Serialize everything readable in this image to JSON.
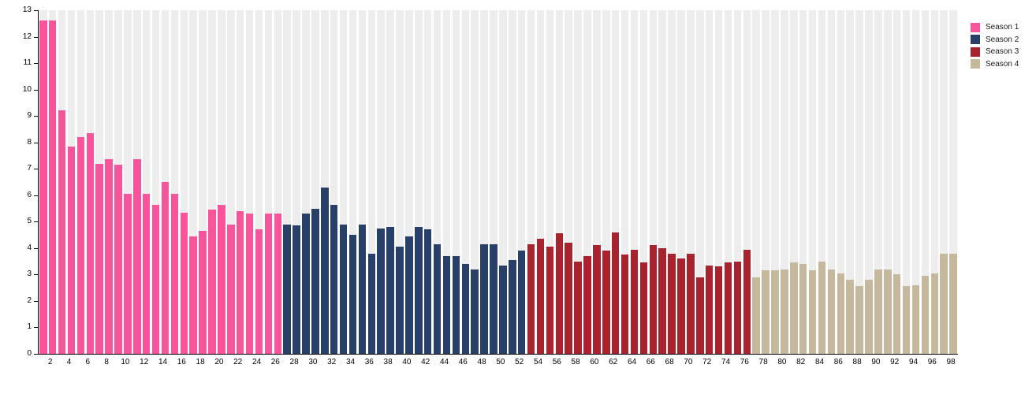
{
  "chart_data": {
    "type": "bar",
    "title": "",
    "xlabel": "",
    "ylabel": "",
    "ylim": [
      0,
      13
    ],
    "yticks": [
      0,
      1,
      2,
      3,
      4,
      5,
      6,
      7,
      8,
      9,
      10,
      11,
      12,
      13
    ],
    "x_start": 1,
    "x_end": 98,
    "xtick_step": 2,
    "grid": "vertical-stripes",
    "grid_color": "#EDEDED",
    "legend_position": "top-right",
    "series": [
      {
        "name": "Season 1",
        "color": "#F8549C",
        "episodes": "1-26",
        "values": [
          12.6,
          12.6,
          9.2,
          7.85,
          8.2,
          8.35,
          7.2,
          7.35,
          7.15,
          6.05,
          7.35,
          6.05,
          5.65,
          6.5,
          6.05,
          5.35,
          4.45,
          4.65,
          5.45,
          5.65,
          4.9,
          5.4,
          5.3,
          4.7,
          5.3,
          5.3
        ]
      },
      {
        "name": "Season 2",
        "color": "#283F6A",
        "episodes": "27-52",
        "values": [
          4.9,
          4.85,
          5.3,
          5.5,
          6.3,
          5.65,
          4.9,
          4.5,
          4.9,
          3.8,
          4.75,
          4.8,
          4.05,
          4.45,
          4.8,
          4.7,
          4.15,
          3.7,
          3.7,
          3.4,
          3.2,
          4.15,
          4.15,
          3.35,
          3.55,
          3.9
        ]
      },
      {
        "name": "Season 3",
        "color": "#A8232E",
        "episodes": "53-76",
        "values": [
          4.15,
          4.35,
          4.05,
          4.55,
          4.2,
          3.5,
          3.7,
          4.1,
          3.9,
          4.6,
          3.75,
          3.95,
          3.45,
          4.1,
          4.0,
          3.8,
          3.6,
          3.8,
          2.9,
          3.35,
          3.3,
          3.45,
          3.5,
          3.95
        ]
      },
      {
        "name": "Season 4",
        "color": "#C5B89C",
        "episodes": "77-98",
        "values": [
          2.9,
          3.15,
          3.15,
          3.2,
          3.45,
          3.4,
          3.15,
          3.5,
          3.2,
          3.05,
          2.8,
          2.55,
          2.8,
          3.2,
          3.2,
          3.0,
          2.55,
          2.6,
          2.95,
          3.05,
          3.8,
          3.8
        ]
      }
    ]
  },
  "legend": {
    "items": [
      {
        "label": "Season 1",
        "color": "#F8549C"
      },
      {
        "label": "Season 2",
        "color": "#283F6A"
      },
      {
        "label": "Season 3",
        "color": "#A8232E"
      },
      {
        "label": "Season 4",
        "color": "#C5B89C"
      }
    ]
  }
}
